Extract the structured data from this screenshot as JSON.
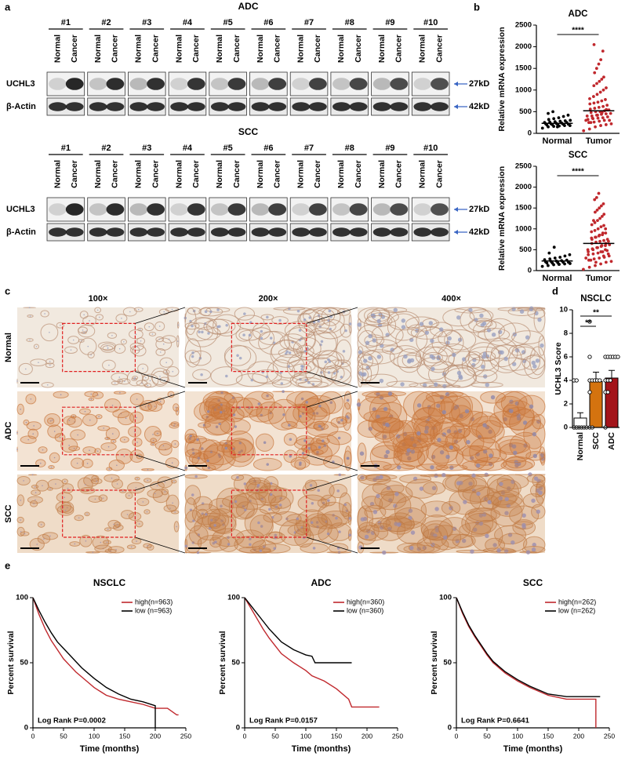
{
  "panel_labels": [
    "a",
    "b",
    "c",
    "d",
    "e"
  ],
  "western_blot": {
    "groups": [
      {
        "title": "ADC",
        "samples": [
          "#1",
          "#2",
          "#3",
          "#4",
          "#5",
          "#6",
          "#7",
          "#8",
          "#9",
          "#10"
        ]
      },
      {
        "title": "SCC",
        "samples": [
          "#1",
          "#2",
          "#3",
          "#4",
          "#5",
          "#6",
          "#7",
          "#8",
          "#9",
          "#10"
        ]
      }
    ],
    "lanes": [
      "Normal",
      "Cancer"
    ],
    "rows": [
      "UCHL3",
      "β-Actin"
    ],
    "sizes": [
      "27kD",
      "42kD"
    ]
  },
  "ihc": {
    "columns": [
      "100×",
      "200×",
      "400×"
    ],
    "rows": [
      "Normal",
      "ADC",
      "SCC"
    ]
  },
  "chart_data": [
    {
      "type": "dot_plot",
      "title": "ADC",
      "ylabel": "Relative mRNA expression",
      "categories": [
        "Normal",
        "Tumor"
      ],
      "colors": [
        "#000000",
        "#c0282d"
      ],
      "points": [
        [
          120,
          150,
          160,
          170,
          180,
          180,
          190,
          200,
          200,
          210,
          210,
          220,
          220,
          230,
          240,
          250,
          250,
          260,
          270,
          280,
          290,
          300,
          320,
          340,
          360,
          390,
          420,
          460,
          500,
          150
        ],
        [
          60,
          100,
          150,
          180,
          200,
          220,
          250,
          260,
          280,
          300,
          300,
          320,
          340,
          350,
          360,
          380,
          400,
          400,
          420,
          440,
          450,
          460,
          480,
          500,
          500,
          520,
          540,
          560,
          580,
          600,
          620,
          650,
          680,
          700,
          720,
          750,
          780,
          800,
          850,
          900,
          950,
          1000,
          1050,
          1100,
          1150,
          1200,
          1250,
          1300,
          1400,
          1500,
          1600,
          1700,
          1900,
          2050,
          350,
          420,
          480,
          550,
          300,
          250
        ]
      ],
      "means": [
        230,
        520
      ],
      "ylim": [
        0,
        2500
      ],
      "yticks": [
        0,
        500,
        1000,
        1500,
        2000,
        2500
      ],
      "annotation": "****"
    },
    {
      "type": "dot_plot",
      "title": "SCC",
      "ylabel": "Relative mRNA expression",
      "categories": [
        "Normal",
        "Tumor"
      ],
      "colors": [
        "#000000",
        "#c0282d"
      ],
      "points": [
        [
          100,
          120,
          140,
          150,
          160,
          170,
          180,
          180,
          190,
          200,
          200,
          210,
          220,
          230,
          240,
          250,
          260,
          280,
          300,
          320,
          350,
          380,
          420,
          560,
          150
        ],
        [
          30,
          80,
          120,
          160,
          200,
          220,
          250,
          280,
          300,
          320,
          350,
          380,
          400,
          420,
          450,
          480,
          500,
          520,
          550,
          580,
          600,
          620,
          650,
          680,
          700,
          720,
          750,
          780,
          800,
          830,
          860,
          900,
          930,
          960,
          1000,
          1050,
          1080,
          1100,
          1150,
          1200,
          1250,
          1300,
          1350,
          1400,
          1450,
          1500,
          1550,
          1600,
          1700,
          1750,
          1850,
          350,
          400,
          450,
          500,
          550,
          600,
          650,
          300,
          250,
          200,
          450,
          500,
          700,
          750,
          800,
          850,
          900,
          1000,
          1200
        ]
      ],
      "means": [
        230,
        650
      ],
      "ylim": [
        0,
        2500
      ],
      "yticks": [
        0,
        500,
        1000,
        1500,
        2000,
        2500
      ],
      "annotation": "****"
    },
    {
      "type": "bar",
      "title": "NSCLC",
      "ylabel": "UCHL3 Score",
      "categories": [
        "Normal",
        "SCC",
        "ADC"
      ],
      "values": [
        0.8,
        3.9,
        4.2
      ],
      "errors": [
        0.45,
        0.8,
        0.65
      ],
      "colors": [
        "#ffffff",
        "#d4730f",
        "#a3141a"
      ],
      "points": [
        [
          0,
          0,
          0,
          0,
          0,
          0,
          0,
          0,
          4,
          4
        ],
        [
          9,
          6,
          4,
          4,
          4,
          4,
          4,
          3,
          0,
          0
        ],
        [
          6,
          6,
          6,
          6,
          6,
          6,
          4,
          4,
          4,
          3,
          3,
          0
        ]
      ],
      "ylim": [
        0,
        10
      ],
      "yticks": [
        0,
        2,
        4,
        6,
        8,
        10
      ],
      "annotations": [
        "**",
        "**"
      ]
    },
    {
      "type": "km",
      "title": "NSCLC",
      "xlabel": "Time (months)",
      "ylabel": "Percent survival",
      "xlim": [
        0,
        250
      ],
      "xticks": [
        0,
        50,
        100,
        150,
        200,
        250
      ],
      "ylim": [
        0,
        100
      ],
      "yticks": [
        0,
        50,
        100
      ],
      "annotation": "Log Rank P=0.0002",
      "series": [
        {
          "name": "high(n=963)",
          "color": "#c0282d",
          "x": [
            0,
            10,
            20,
            30,
            40,
            50,
            60,
            70,
            80,
            90,
            100,
            120,
            140,
            160,
            180,
            200,
            220,
            235,
            238
          ],
          "values": [
            100,
            87,
            76,
            67,
            60,
            53,
            48,
            43,
            39,
            35,
            31,
            25,
            22,
            20,
            18,
            15,
            15,
            10,
            10
          ]
        },
        {
          "name": "low (n=963)",
          "color": "#000000",
          "x": [
            0,
            10,
            20,
            30,
            40,
            50,
            60,
            70,
            80,
            90,
            100,
            120,
            140,
            160,
            180,
            200,
            200
          ],
          "values": [
            100,
            90,
            81,
            73,
            66,
            61,
            56,
            51,
            46,
            42,
            38,
            31,
            26,
            22,
            20,
            17,
            0
          ]
        }
      ]
    },
    {
      "type": "km",
      "title": "ADC",
      "xlabel": "Time (months)",
      "ylabel": "Percent survival",
      "xlim": [
        0,
        250
      ],
      "xticks": [
        0,
        50,
        100,
        150,
        200,
        250
      ],
      "ylim": [
        0,
        100
      ],
      "yticks": [
        0,
        50,
        100
      ],
      "annotation": "Log Rank P=0.0157",
      "series": [
        {
          "name": "high(n=360)",
          "color": "#c0282d",
          "x": [
            0,
            10,
            20,
            30,
            40,
            50,
            60,
            80,
            100,
            110,
            130,
            150,
            170,
            175,
            220
          ],
          "values": [
            100,
            92,
            84,
            76,
            69,
            63,
            57,
            50,
            44,
            40,
            36,
            30,
            22,
            16,
            16
          ]
        },
        {
          "name": "low (n=360)",
          "color": "#000000",
          "x": [
            0,
            10,
            20,
            30,
            40,
            50,
            60,
            80,
            100,
            110,
            115,
            175
          ],
          "values": [
            100,
            94,
            88,
            82,
            76,
            71,
            66,
            60,
            56,
            55,
            50,
            50
          ]
        }
      ]
    },
    {
      "type": "km",
      "title": "SCC",
      "xlabel": "Time (months)",
      "ylabel": "Percent survival",
      "xlim": [
        0,
        250
      ],
      "xticks": [
        0,
        50,
        100,
        150,
        200,
        250
      ],
      "ylim": [
        0,
        100
      ],
      "yticks": [
        0,
        50,
        100
      ],
      "annotation": "Log Rank P=0.6641",
      "series": [
        {
          "name": "high(n=262)",
          "color": "#c0282d",
          "x": [
            0,
            10,
            20,
            30,
            40,
            50,
            60,
            80,
            100,
            120,
            150,
            180,
            200,
            228,
            228
          ],
          "values": [
            100,
            88,
            78,
            70,
            63,
            56,
            50,
            42,
            36,
            31,
            25,
            22,
            22,
            22,
            0
          ]
        },
        {
          "name": "low (n=262)",
          "color": "#000000",
          "x": [
            0,
            10,
            20,
            30,
            40,
            50,
            60,
            80,
            100,
            120,
            150,
            180,
            200,
            235
          ],
          "values": [
            100,
            89,
            79,
            71,
            64,
            57,
            51,
            43,
            37,
            32,
            26,
            24,
            24,
            24
          ]
        }
      ]
    }
  ]
}
